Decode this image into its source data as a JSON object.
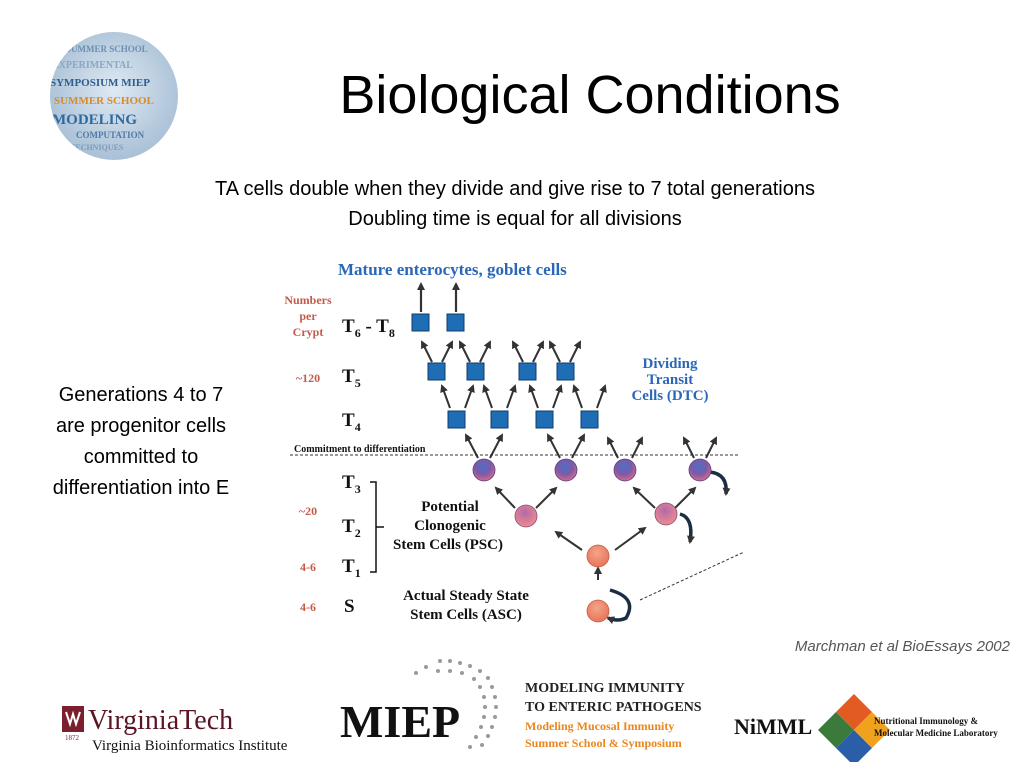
{
  "slide": {
    "title": "Biological Conditions",
    "subtitle_lines": [
      "TA cells double when they divide and give rise to 7 total generations",
      "Doubling time is equal for all divisions"
    ],
    "side_text_lines": [
      "Generations 4 to 7",
      "are progenitor cells",
      "committed to",
      "differentiation into E"
    ],
    "citation": "Marchman et al BioEssays 2002"
  },
  "logo_sphere": {
    "words": [
      "SUMMER SCHOOL",
      "EXPERIMENTAL",
      "SYMPOSIUM MIEP",
      "SUMMER SCHOOL",
      "MODELING",
      "COMPUTATION",
      "TECHNIQUES"
    ]
  },
  "diagram": {
    "top_label": "Mature enterocytes, goblet cells",
    "numbers_per_crypt": [
      "Numbers",
      "per",
      "Crypt"
    ],
    "count_120": "~120",
    "count_20": "~20",
    "count_t1": "4-6",
    "count_s": "4-6",
    "gen_t68": "T",
    "gen_t68_sub6": "6",
    "gen_t68_dash": " - T",
    "gen_t68_sub8": "8",
    "gen_t5": "T",
    "gen_t5_sub": "5",
    "gen_t4": "T",
    "gen_t4_sub": "4",
    "gen_t3": "T",
    "gen_t3_sub": "3",
    "gen_t2": "T",
    "gen_t2_sub": "2",
    "gen_t1": "T",
    "gen_t1_sub": "1",
    "gen_s": "S",
    "dtc_label": [
      "Dividing",
      "Transit",
      "Cells (DTC)"
    ],
    "commitment": "Commitment to differentiation",
    "psc_label": [
      "Potential",
      "Clonogenic",
      "Stem Cells (PSC)"
    ],
    "asc_label": [
      "Actual Steady State",
      "Stem Cells (ASC)"
    ]
  },
  "footer": {
    "vt_name": "VirginiaTech",
    "vt_year": "1872",
    "vt_institute": "Virginia Bioinformatics Institute",
    "miep": "MIEP",
    "miep_line1": "MODELING IMMUNITY",
    "miep_line2": "TO ENTERIC PATHOGENS",
    "miep_line3": "Modeling Mucosal Immunity",
    "miep_line4": "Summer School & Symposium",
    "nimml": "NiMML",
    "nimml_line1": "Nutritional Immunology &",
    "nimml_line2": "Molecular Medicine Laboratory"
  },
  "colors": {
    "diagram_blue": "#2a67b8",
    "diagram_red": "#c55a4a",
    "square_fill": "#1f6db5",
    "miep_orange": "#e8871e",
    "vt_maroon": "#7b1e2e"
  }
}
